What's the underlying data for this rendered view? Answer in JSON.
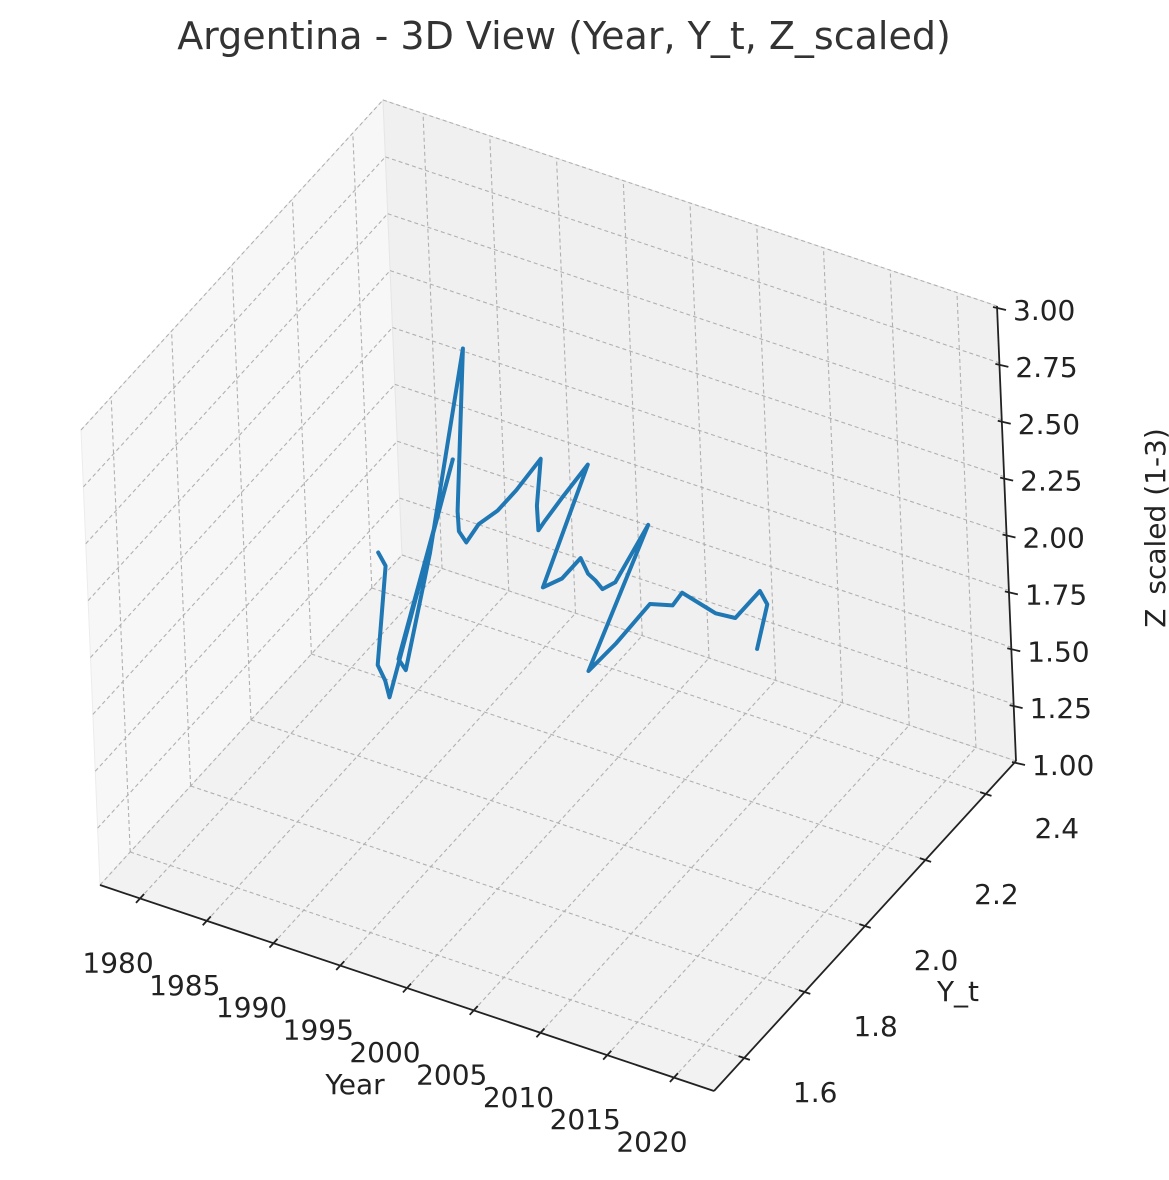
{
  "chart_data": {
    "type": "line",
    "title": "Argentina - 3D View (Year, Y_t, Z_scaled)",
    "xlabel": "Year",
    "ylabel": "Y_t",
    "zlabel": "Z_scaled (1-3)",
    "x_ticks": [
      "1980",
      "1985",
      "1990",
      "1995",
      "2000",
      "2005",
      "2010",
      "2015",
      "2020"
    ],
    "y_ticks": [
      "1.6",
      "1.8",
      "2.0",
      "2.2",
      "2.4"
    ],
    "z_ticks": [
      "1.00",
      "1.25",
      "1.50",
      "1.75",
      "2.00",
      "2.25",
      "2.50",
      "2.75",
      "3.00"
    ],
    "xlim": [
      1977,
      2023
    ],
    "ylim": [
      1.5,
      2.5
    ],
    "zlim": [
      1.0,
      3.0
    ],
    "grid": true,
    "projection": "3d",
    "series": [
      {
        "color": "#1f77b4",
        "x": [
          1980,
          1981,
          1982,
          1983,
          1984,
          1985,
          1986,
          1987,
          1988,
          1989,
          1990,
          1991,
          1992,
          1993,
          1994,
          1995,
          1996,
          1997,
          1998,
          1999,
          2000,
          2001,
          2002,
          2003,
          2004,
          2005,
          2006,
          2007,
          2008,
          2009,
          2010,
          2011,
          2012,
          2013,
          2014,
          2015,
          2016,
          2017,
          2018,
          2019,
          2020
        ],
        "y": [
          2.3,
          2.28,
          2.2,
          2.18,
          2.15,
          2.34,
          2.1,
          2.08,
          2.13,
          2.22,
          2.14,
          2.1,
          2.08,
          2.08,
          2.1,
          2.12,
          2.16,
          2.1,
          2.06,
          2.04,
          2.06,
          2.1,
          1.9,
          1.92,
          1.94,
          1.92,
          1.9,
          1.88,
          1.88,
          1.95,
          1.7,
          1.75,
          1.82,
          1.85,
          1.84,
          1.88,
          1.86,
          1.88,
          1.92,
          1.9,
          1.82
        ],
        "z": [
          1.36,
          1.35,
          1.05,
          1.03,
          1.02,
          1.81,
          1.3,
          1.3,
          1.76,
          2.55,
          1.97,
          1.96,
          1.96,
          2.06,
          2.11,
          2.19,
          2.29,
          2.19,
          2.16,
          2.25,
          2.35,
          2.45,
          2.22,
          2.25,
          2.33,
          2.31,
          2.33,
          2.34,
          2.39,
          2.56,
          2.3,
          2.37,
          2.46,
          2.43,
          2.52,
          2.41,
          2.44,
          2.41,
          2.49,
          2.48,
          2.42
        ]
      }
    ]
  }
}
